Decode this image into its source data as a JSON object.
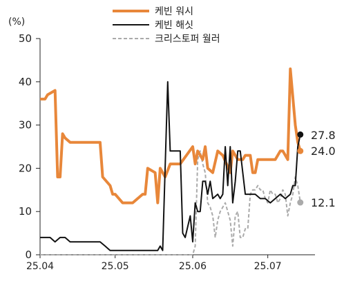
{
  "chart_data": {
    "type": "line",
    "unit_label": "(%)",
    "yticks": [
      "0",
      "10",
      "20",
      "30",
      "40",
      "50"
    ],
    "ylim": [
      0,
      50
    ],
    "xticks": [
      "25.04",
      "25.05",
      "25.06",
      "25.07"
    ],
    "xlim": [
      0,
      106
    ],
    "xtick_positions": [
      0,
      30,
      61,
      91
    ],
    "grid": false,
    "legend_position": "top-center",
    "series": [
      {
        "name": "케빈 워시",
        "color": "#E8873A",
        "end_label": "24.0",
        "x": [
          0,
          2,
          3,
          6,
          7,
          8,
          9,
          10,
          12,
          16,
          21,
          24,
          25,
          28,
          29,
          30,
          33,
          37,
          41,
          42,
          43,
          46,
          47,
          48,
          50,
          52,
          56,
          61,
          62,
          63,
          65,
          66,
          67,
          69,
          71,
          73,
          76,
          77,
          79,
          81,
          82,
          84,
          85,
          86,
          87,
          90,
          91,
          92,
          93,
          94,
          96,
          97,
          99,
          100,
          102,
          103,
          104
        ],
        "y": [
          36,
          36,
          37,
          38,
          18,
          18,
          28,
          27,
          26,
          26,
          26,
          26,
          18,
          16,
          14,
          14,
          12,
          12,
          14,
          14,
          20,
          19,
          12,
          20,
          18,
          21,
          21,
          25,
          21,
          24,
          22,
          25,
          20,
          19,
          24,
          23,
          19,
          24,
          22,
          22,
          23,
          23,
          19,
          19,
          22,
          22,
          22,
          22,
          22,
          22,
          24,
          24,
          22,
          43,
          30,
          26,
          24
        ]
      },
      {
        "name": "케빈 해싯",
        "color": "#111111",
        "end_label": "27.8",
        "x": [
          0,
          2,
          4,
          6,
          8,
          10,
          12,
          14,
          16,
          18,
          20,
          22,
          23,
          24,
          26,
          28,
          30,
          32,
          34,
          36,
          38,
          40,
          42,
          44,
          46,
          47,
          48,
          49,
          51,
          52,
          54,
          56,
          57,
          58,
          60,
          61,
          62,
          63,
          64,
          65,
          66,
          67,
          68,
          69,
          71,
          72,
          73,
          74,
          75,
          76,
          77,
          78,
          79,
          80,
          82,
          84,
          86,
          88,
          90,
          92,
          94,
          96,
          98,
          100,
          101,
          102,
          103,
          104
        ],
        "y": [
          4,
          4,
          4,
          3,
          4,
          4,
          3,
          3,
          3,
          3,
          3,
          3,
          3,
          3,
          2,
          1,
          1,
          1,
          1,
          1,
          1,
          1,
          1,
          1,
          1,
          1,
          2,
          1,
          40,
          24,
          24,
          24,
          5,
          4,
          9,
          3,
          12,
          10,
          10,
          17,
          17,
          14,
          17,
          13,
          14,
          13,
          14,
          25,
          16,
          25,
          12,
          17,
          24,
          24,
          14,
          14,
          14,
          13,
          13,
          12,
          13,
          14,
          13,
          14,
          16,
          16,
          25,
          27.8
        ]
      },
      {
        "name": "크리스토퍼 월러",
        "color": "#aaaaaa",
        "end_label": "12.1",
        "x": [
          0,
          10,
          20,
          30,
          40,
          50,
          55,
          60,
          61,
          62,
          63,
          64,
          65,
          66,
          67,
          68,
          69,
          70,
          71,
          72,
          73,
          74,
          75,
          76,
          77,
          78,
          79,
          80,
          81,
          82,
          83,
          84,
          85,
          86,
          87,
          88,
          89,
          90,
          91,
          92,
          93,
          94,
          95,
          96,
          97,
          98,
          99,
          100,
          101,
          102,
          103,
          104
        ],
        "y": [
          0,
          0,
          0,
          0,
          0,
          0,
          0,
          0,
          0,
          2,
          22,
          24,
          21,
          19,
          12,
          11,
          9,
          4,
          8,
          10,
          11,
          12,
          10,
          8,
          2,
          9,
          10,
          4,
          4,
          6,
          6,
          14,
          15,
          15,
          16,
          15,
          15,
          13,
          12,
          15,
          14,
          14,
          12,
          13,
          15,
          14,
          9,
          12,
          14,
          18,
          16,
          12.1
        ]
      }
    ]
  }
}
